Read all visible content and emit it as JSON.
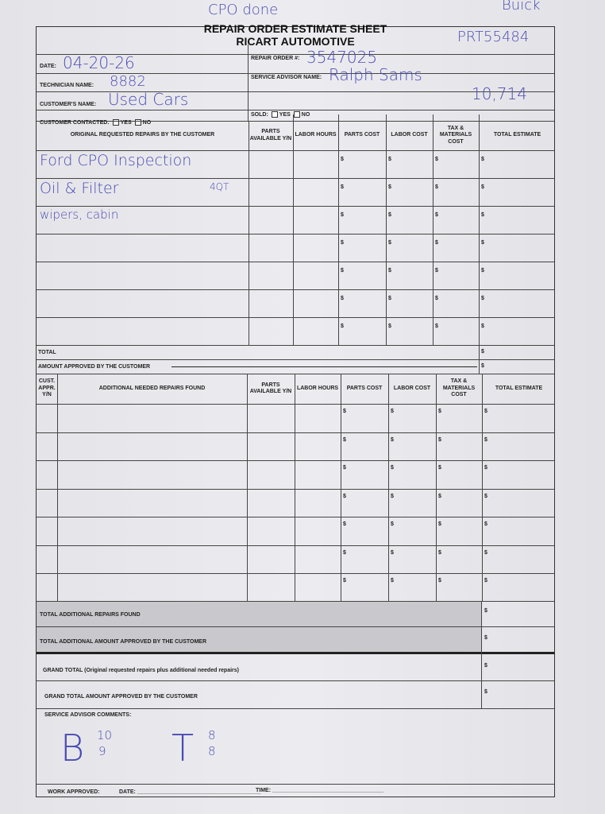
{
  "annotations": {
    "top_note": "CPO done",
    "top_right": "Buick",
    "stock": "PRT55484",
    "mileage": "10,714"
  },
  "header": {
    "title": "REPAIR ORDER ESTIMATE SHEET",
    "company": "RICART AUTOMOTIVE"
  },
  "fields": {
    "date_label": "DATE:",
    "date_value": "04-20-26",
    "technician_label": "TECHNICIAN NAME:",
    "technician_value": "8882",
    "customer_label": "CUSTOMER'S NAME:",
    "customer_value": "Used Cars",
    "contacted_label": "CUSTOMER CONTACTED:",
    "yes": "YES",
    "no": "NO",
    "repair_order_label": "REPAIR ORDER #:",
    "repair_order_value": "3547025",
    "advisor_label": "SERVICE ADVISOR NAME:",
    "advisor_value": "Ralph Sams",
    "sold_label": "SOLD:"
  },
  "table1": {
    "headers": [
      "ORIGINAL REQUESTED REPAIRS BY THE CUSTOMER",
      "PARTS AVAILABLE Y/N",
      "LABOR HOURS",
      "PARTS COST",
      "LABOR COST",
      "TAX & MATERIALS COST",
      "TOTAL ESTIMATE"
    ],
    "rows": [
      "Ford CPO Inspection",
      "Oil & Filter",
      "wipers, cabin",
      "",
      "",
      "",
      ""
    ],
    "row_notes": [
      "",
      "4QT",
      "",
      "",
      "",
      "",
      ""
    ],
    "total_label": "TOTAL",
    "approved_label": "AMOUNT APPROVED BY THE CUSTOMER"
  },
  "table2": {
    "headers": [
      "CUST. APPR. Y/N",
      "ADDITIONAL NEEDED REPAIRS FOUND",
      "PARTS AVAILABLE Y/N",
      "LABOR HOURS",
      "PARTS COST",
      "LABOR COST",
      "TAX & MATERIALS COST",
      "TOTAL ESTIMATE"
    ],
    "row_count": 7
  },
  "currency": "$",
  "totals": {
    "additional_found": "TOTAL ADDITIONAL REPAIRS FOUND",
    "additional_approved": "TOTAL ADDITIONAL AMOUNT APPROVED BY THE CUSTOMER",
    "grand_total": "GRAND TOTAL (Original requested repairs plus additional needed repairs)",
    "grand_approved": "GRAND TOTAL AMOUNT APPROVED BY THE CUSTOMER"
  },
  "comments": {
    "label": "SERVICE ADVISOR COMMENTS:",
    "b": "B",
    "b_top": "10",
    "b_bottom": "9",
    "t": "T",
    "t_top": "8",
    "t_bottom": "8"
  },
  "footer": {
    "work_approved": "WORK APPROVED:",
    "date": "DATE:",
    "time": "TIME:"
  }
}
